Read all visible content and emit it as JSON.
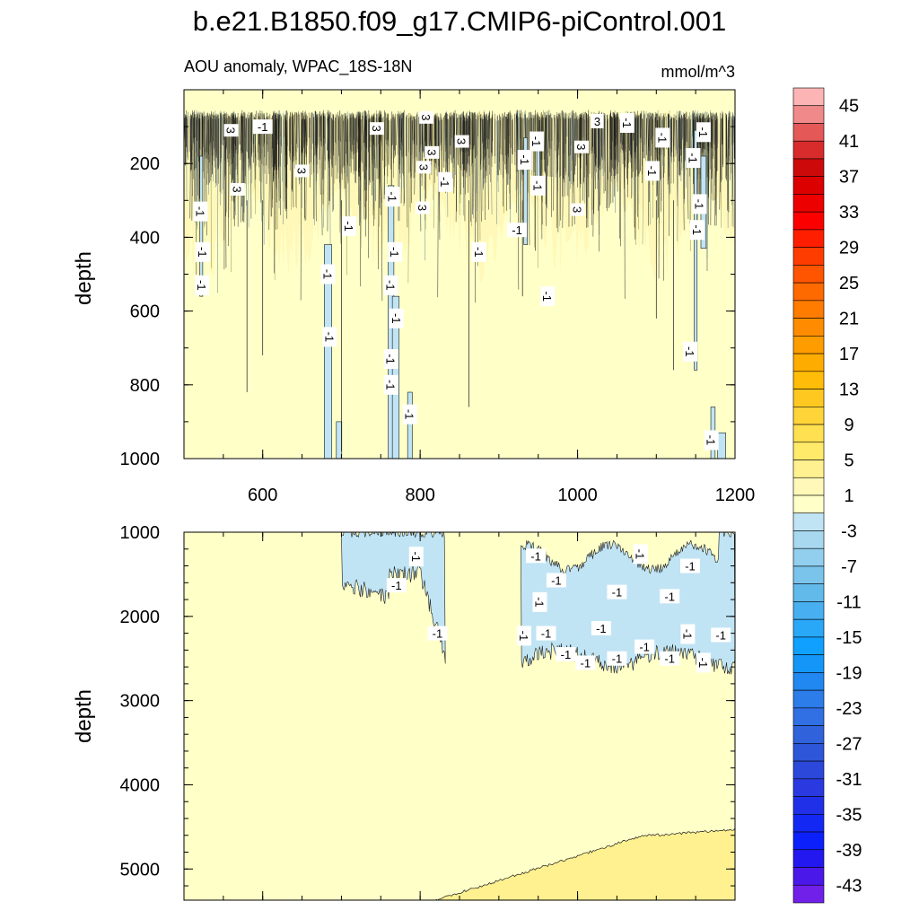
{
  "title": "b.e21.B1850.f09_g17.CMIP6-piControl.001",
  "chart_data": {
    "type": "contour",
    "top_panel": {
      "left_label": "AOU anomaly, WPAC_18S-18N",
      "right_label": "mmol/m^3",
      "xlabel": "",
      "ylabel": "depth",
      "xlim": [
        500,
        1200
      ],
      "ylim": [
        1000,
        0
      ],
      "x_ticks": [
        600,
        800,
        1000,
        1200
      ],
      "y_ticks": [
        200,
        400,
        600,
        800,
        1000
      ],
      "contour_labels": [
        {
          "text": "-1",
          "x": 600,
          "y": 100,
          "rot": 0
        },
        {
          "text": "3",
          "x": 560,
          "y": 110,
          "rot": 90
        },
        {
          "text": "3",
          "x": 650,
          "y": 220,
          "rot": 90
        },
        {
          "text": "3",
          "x": 568,
          "y": 270,
          "rot": 90
        },
        {
          "text": "-1",
          "x": 521,
          "y": 330,
          "rot": 90
        },
        {
          "text": "-1",
          "x": 524,
          "y": 440,
          "rot": 90
        },
        {
          "text": "-1",
          "x": 523,
          "y": 530,
          "rot": 90
        },
        {
          "text": "3",
          "x": 745,
          "y": 105,
          "rot": 90
        },
        {
          "text": "3",
          "x": 808,
          "y": 75,
          "rot": 90
        },
        {
          "text": "3",
          "x": 805,
          "y": 210,
          "rot": 90
        },
        {
          "text": "3",
          "x": 815,
          "y": 170,
          "rot": 90
        },
        {
          "text": "3",
          "x": 853,
          "y": 140,
          "rot": 90
        },
        {
          "text": "-1",
          "x": 710,
          "y": 370,
          "rot": 90
        },
        {
          "text": "-1",
          "x": 683,
          "y": 500,
          "rot": 90
        },
        {
          "text": "-1",
          "x": 685,
          "y": 670,
          "rot": 90
        },
        {
          "text": "3",
          "x": 803,
          "y": 320,
          "rot": 90
        },
        {
          "text": "-1",
          "x": 765,
          "y": 290,
          "rot": 90
        },
        {
          "text": "-1",
          "x": 768,
          "y": 440,
          "rot": 90
        },
        {
          "text": "-1",
          "x": 763,
          "y": 530,
          "rot": 90
        },
        {
          "text": "-1",
          "x": 770,
          "y": 620,
          "rot": 90
        },
        {
          "text": "-1",
          "x": 763,
          "y": 730,
          "rot": 90
        },
        {
          "text": "-1",
          "x": 763,
          "y": 800,
          "rot": 90
        },
        {
          "text": "-1",
          "x": 787,
          "y": 880,
          "rot": 90
        },
        {
          "text": "-1",
          "x": 832,
          "y": 250,
          "rot": 90
        },
        {
          "text": "-1",
          "x": 875,
          "y": 440,
          "rot": 90
        },
        {
          "text": "-1",
          "x": 933,
          "y": 190,
          "rot": 90
        },
        {
          "text": "-1",
          "x": 923,
          "y": 380,
          "rot": 0
        },
        {
          "text": "-1",
          "x": 948,
          "y": 140,
          "rot": 90
        },
        {
          "text": "-1",
          "x": 950,
          "y": 260,
          "rot": 90
        },
        {
          "text": "3",
          "x": 1005,
          "y": 155,
          "rot": 90
        },
        {
          "text": "3",
          "x": 1000,
          "y": 325,
          "rot": 90
        },
        {
          "text": "-1",
          "x": 962,
          "y": 560,
          "rot": 90
        },
        {
          "text": "3",
          "x": 1025,
          "y": 85,
          "rot": 0
        },
        {
          "text": "-1",
          "x": 1063,
          "y": 90,
          "rot": 90
        },
        {
          "text": "-1",
          "x": 1108,
          "y": 130,
          "rot": 90
        },
        {
          "text": "-1",
          "x": 1095,
          "y": 220,
          "rot": 90
        },
        {
          "text": "-1",
          "x": 1160,
          "y": 115,
          "rot": 90
        },
        {
          "text": "-1",
          "x": 1147,
          "y": 185,
          "rot": 90
        },
        {
          "text": "-1",
          "x": 1155,
          "y": 310,
          "rot": 90
        },
        {
          "text": "-1",
          "x": 1152,
          "y": 380,
          "rot": 90
        },
        {
          "text": "-1",
          "x": 1143,
          "y": 710,
          "rot": 90
        },
        {
          "text": "-1",
          "x": 1170,
          "y": 950,
          "rot": 90
        }
      ]
    },
    "bottom_panel": {
      "xlabel": "",
      "ylabel": "depth",
      "xlim": [
        500,
        1200
      ],
      "ylim": [
        5370,
        1000
      ],
      "y_ticks": [
        1000,
        2000,
        3000,
        4000,
        5000
      ],
      "contour_labels": [
        {
          "text": "-1",
          "x": 795,
          "y": 1290,
          "rot": 90
        },
        {
          "text": "-1",
          "x": 770,
          "y": 1630,
          "rot": 0
        },
        {
          "text": "-1",
          "x": 822,
          "y": 2200,
          "rot": 0
        },
        {
          "text": "-1",
          "x": 947,
          "y": 1280,
          "rot": 0
        },
        {
          "text": "-1",
          "x": 952,
          "y": 1830,
          "rot": 90
        },
        {
          "text": "-1",
          "x": 932,
          "y": 2230,
          "rot": 90
        },
        {
          "text": "-1",
          "x": 960,
          "y": 2200,
          "rot": 0
        },
        {
          "text": "-1",
          "x": 973,
          "y": 1570,
          "rot": 0
        },
        {
          "text": "-1",
          "x": 985,
          "y": 2450,
          "rot": 0
        },
        {
          "text": "-1",
          "x": 1010,
          "y": 2550,
          "rot": 0
        },
        {
          "text": "-1",
          "x": 1030,
          "y": 2140,
          "rot": 0
        },
        {
          "text": "-1",
          "x": 1050,
          "y": 1710,
          "rot": 0
        },
        {
          "text": "-1",
          "x": 1050,
          "y": 2500,
          "rot": 0
        },
        {
          "text": "-1",
          "x": 1080,
          "y": 1260,
          "rot": 90
        },
        {
          "text": "-1",
          "x": 1085,
          "y": 2360,
          "rot": 0
        },
        {
          "text": "-1",
          "x": 1117,
          "y": 1760,
          "rot": 0
        },
        {
          "text": "-1",
          "x": 1117,
          "y": 2500,
          "rot": 0
        },
        {
          "text": "-1",
          "x": 1143,
          "y": 1400,
          "rot": 0
        },
        {
          "text": "-1",
          "x": 1140,
          "y": 2210,
          "rot": 90
        },
        {
          "text": "-1",
          "x": 1160,
          "y": 2550,
          "rot": 90
        },
        {
          "text": "-1",
          "x": 1182,
          "y": 2220,
          "rot": 0
        }
      ]
    },
    "colorbar": {
      "labels": [
        "45",
        "41",
        "37",
        "33",
        "29",
        "25",
        "21",
        "17",
        "13",
        "9",
        "5",
        "1",
        "-3",
        "-7",
        "-11",
        "-15",
        "-19",
        "-23",
        "-27",
        "-31",
        "-35",
        "-39",
        "-43"
      ],
      "colors": [
        "#fcb4b4",
        "#f08a8a",
        "#e45858",
        "#d82c2c",
        "#cc0a0a",
        "#dc0000",
        "#ec0000",
        "#fc0000",
        "#ff1e00",
        "#ff3c00",
        "#ff5400",
        "#ff6a00",
        "#ff7c00",
        "#ff8c00",
        "#ff9c00",
        "#ffac00",
        "#ffbc08",
        "#ffc820",
        "#ffd438",
        "#ffe050",
        "#ffea6a",
        "#fff090",
        "#fff8b8",
        "#ffffc8",
        "#c0e4f4",
        "#a8d8f0",
        "#92ceee",
        "#7ac4ec",
        "#62baea",
        "#48b0f0",
        "#2aa8f8",
        "#10a0ff",
        "#1496f8",
        "#2088f0",
        "#2c7cea",
        "#3070e4",
        "#3062dc",
        "#2e56d8",
        "#2c48da",
        "#2a3ae0",
        "#2030e8",
        "#1428f4",
        "#0c20fc",
        "#2418f0",
        "#4a18e8",
        "#7020e8"
      ]
    },
    "colors": {
      "positive_fill": "#ffffc8",
      "positive_light": "#fff8b8",
      "positive_mid": "#fff090",
      "negative_fill": "#c0e4f4",
      "contour_line": "#1a1a1a",
      "label_bg": "#ffffff"
    }
  }
}
